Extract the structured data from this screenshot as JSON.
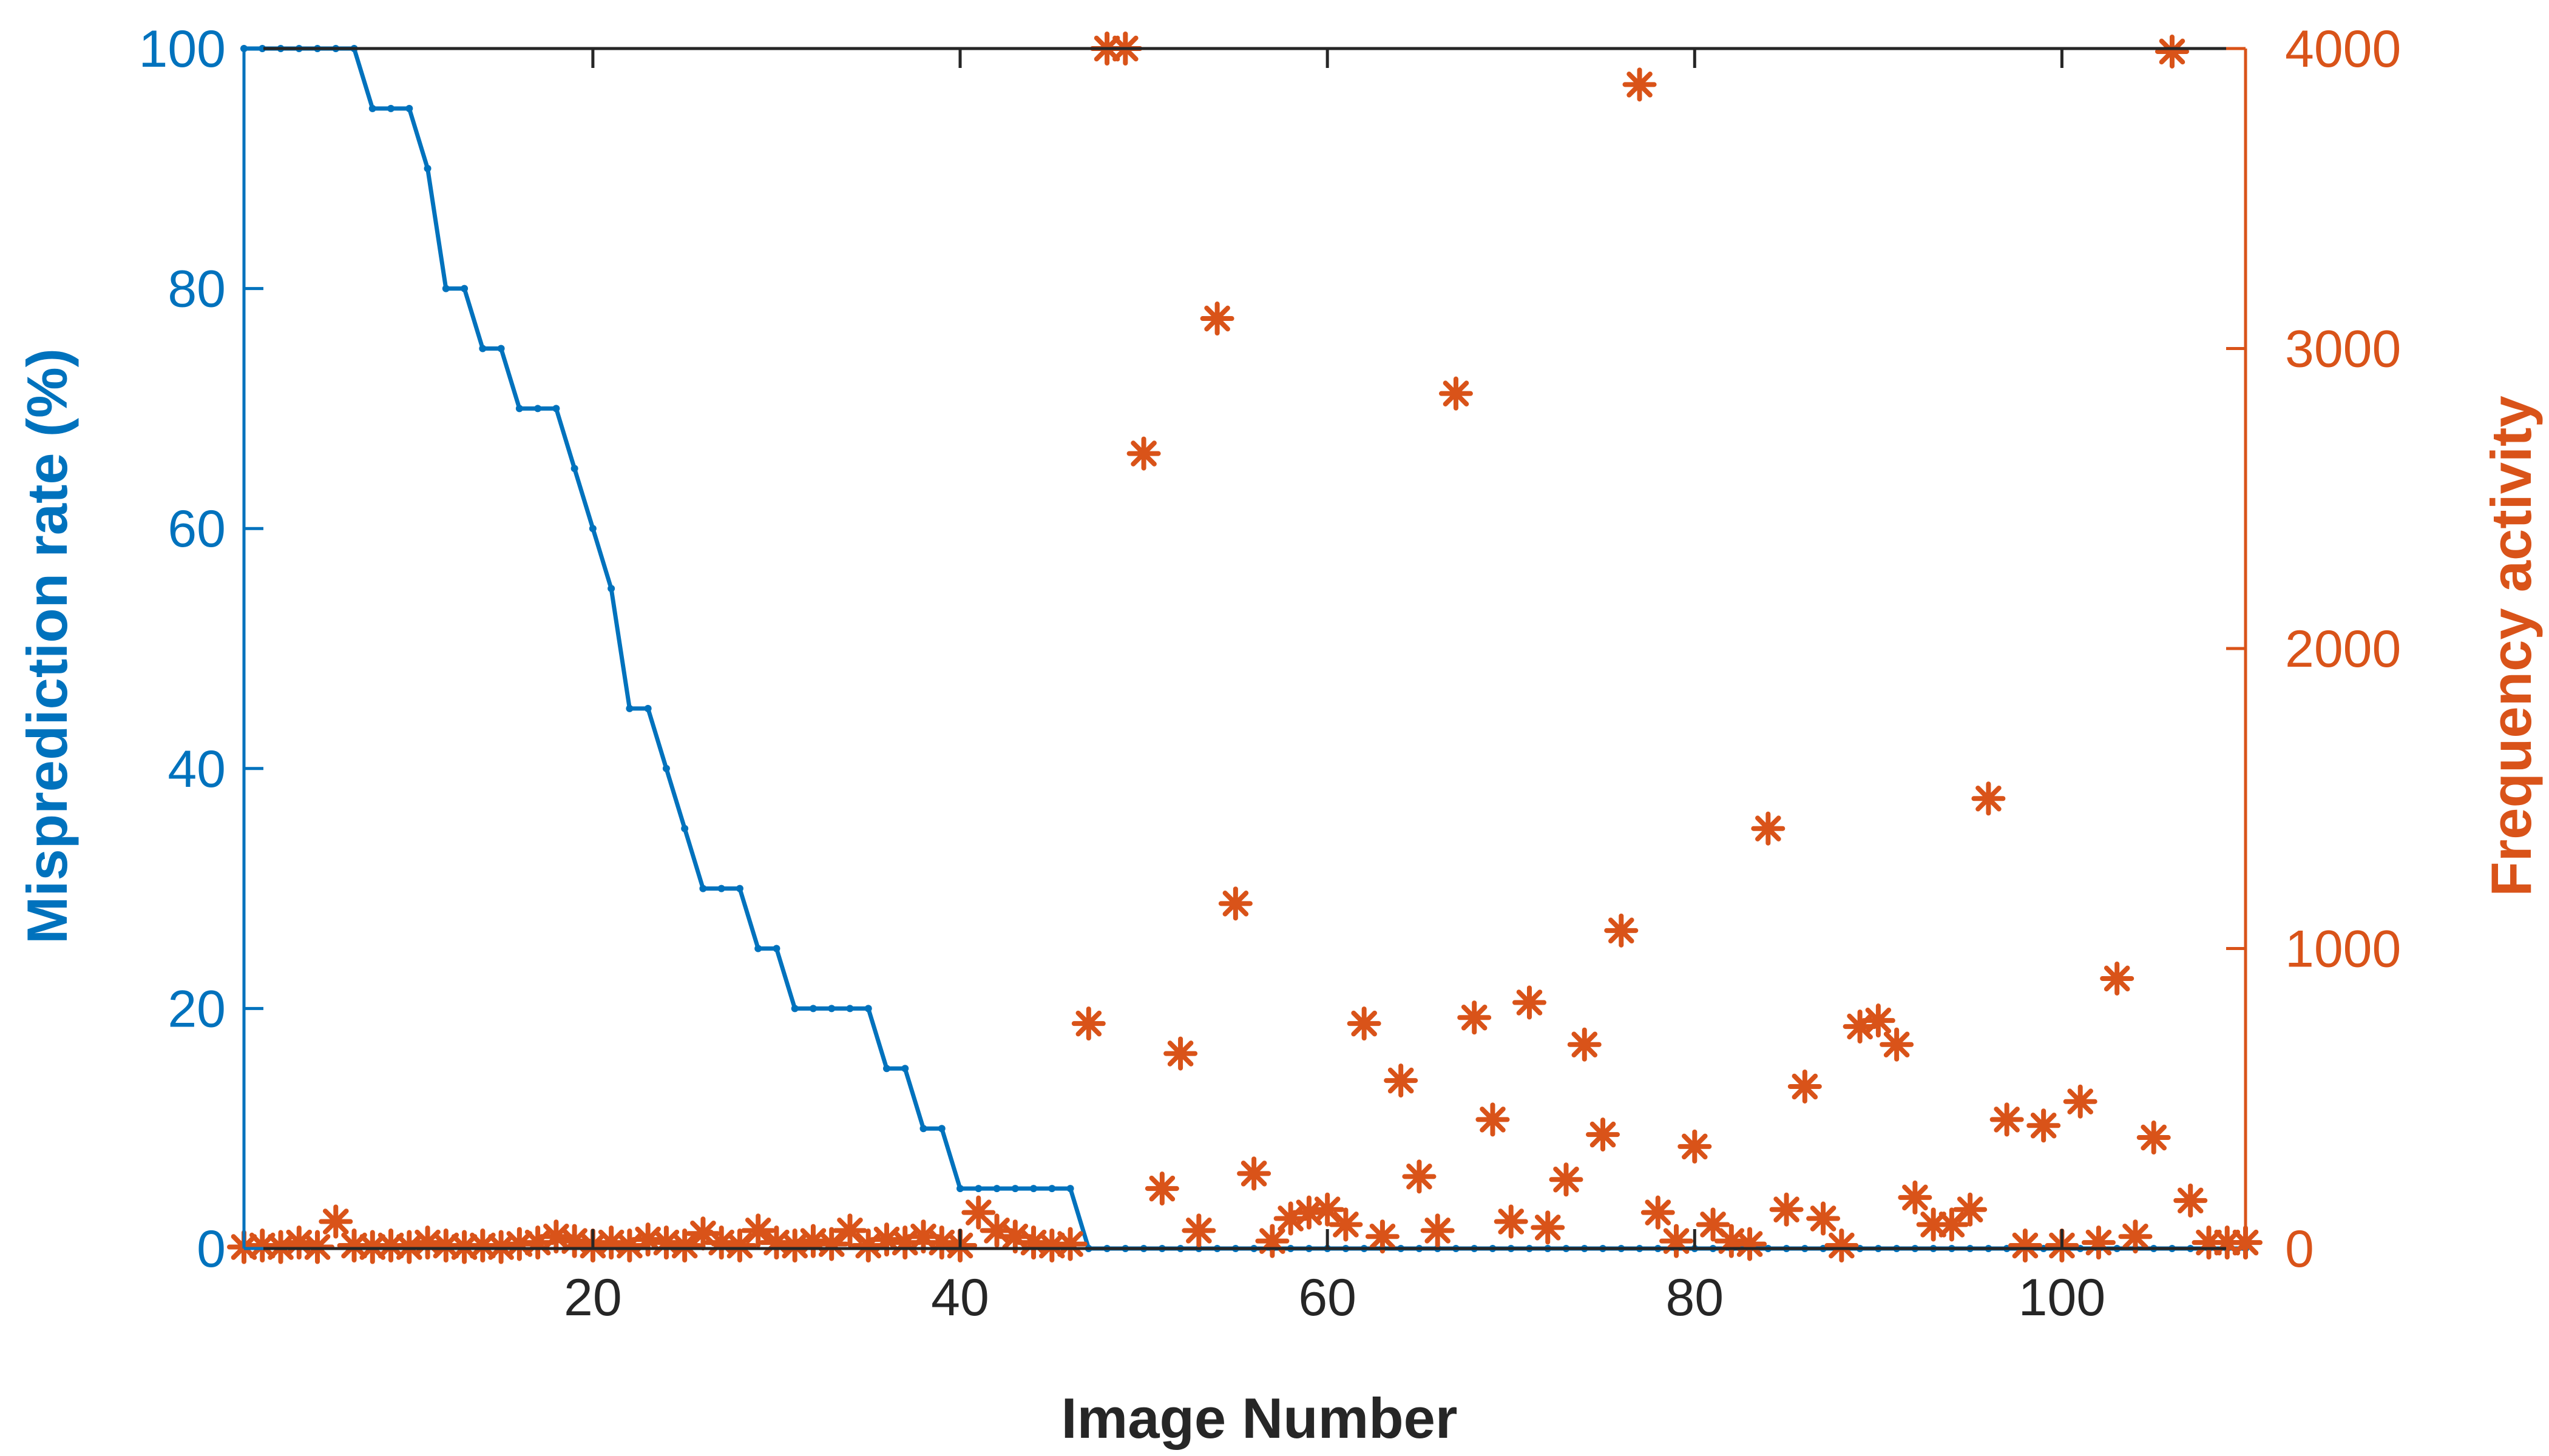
{
  "chart_data": {
    "type": "line",
    "title": "",
    "xlabel": "Image Number",
    "ylabel_left": "Misprediction rate (%)",
    "ylabel_right": "Frequency activity",
    "xlim": [
      1,
      110
    ],
    "ylim_left": [
      0,
      100
    ],
    "ylim_right": [
      0,
      4000
    ],
    "x_ticks": [
      20,
      40,
      60,
      80,
      100
    ],
    "y_ticks_left": [
      0,
      20,
      40,
      60,
      80,
      100
    ],
    "y_ticks_right": [
      0,
      1000,
      2000,
      3000,
      4000
    ],
    "grid": false,
    "colors": {
      "left": "#0072BD",
      "right": "#D95319",
      "axis": "#262626"
    },
    "series": [
      {
        "axis": "left",
        "style": "line-with-dots",
        "x": [
          1,
          2,
          3,
          4,
          5,
          6,
          7,
          8,
          9,
          10,
          11,
          12,
          13,
          14,
          15,
          16,
          17,
          18,
          19,
          20,
          21,
          22,
          23,
          24,
          25,
          26,
          27,
          28,
          29,
          30,
          31,
          32,
          33,
          34,
          35,
          36,
          37,
          38,
          39,
          40,
          41,
          42,
          43,
          44,
          45,
          46,
          47,
          48,
          49,
          50,
          51,
          52,
          53,
          54,
          55,
          56,
          57,
          58,
          59,
          60,
          61,
          62,
          63,
          64,
          65,
          66,
          67,
          68,
          69,
          70,
          71,
          72,
          73,
          74,
          75,
          76,
          77,
          78,
          79,
          80,
          81,
          82,
          83,
          84,
          85,
          86,
          87,
          88,
          89,
          90,
          91,
          92,
          93,
          94,
          95,
          96,
          97,
          98,
          99,
          100,
          101,
          102,
          103,
          104,
          105,
          106,
          107,
          108,
          109,
          110
        ],
        "y": [
          100,
          100,
          100,
          100,
          100,
          100,
          100,
          95,
          95,
          95,
          90,
          80,
          80,
          75,
          75,
          70,
          70,
          70,
          65,
          60,
          55,
          45,
          45,
          40,
          35,
          30,
          30,
          30,
          25,
          25,
          20,
          20,
          20,
          20,
          20,
          15,
          15,
          10,
          10,
          5,
          5,
          5,
          5,
          5,
          5,
          5,
          0,
          0,
          0,
          0,
          0,
          0,
          0,
          0,
          0,
          0,
          0,
          0,
          0,
          0,
          0,
          0,
          0,
          0,
          0,
          0,
          0,
          0,
          0,
          0,
          0,
          0,
          0,
          0,
          0,
          0,
          0,
          0,
          0,
          0,
          0,
          0,
          0,
          0,
          0,
          0,
          0,
          0,
          0,
          0,
          0,
          0,
          0,
          0,
          0,
          0,
          0,
          0,
          0,
          0,
          0,
          0,
          0,
          0,
          0,
          0,
          0,
          0,
          0,
          0
        ]
      },
      {
        "axis": "right",
        "style": "asterisk",
        "x": [
          1,
          2,
          3,
          4,
          5,
          6,
          7,
          8,
          9,
          10,
          11,
          12,
          13,
          14,
          15,
          16,
          17,
          18,
          19,
          20,
          21,
          22,
          23,
          24,
          25,
          26,
          27,
          28,
          29,
          30,
          31,
          32,
          33,
          34,
          35,
          36,
          37,
          38,
          39,
          40,
          41,
          42,
          43,
          44,
          45,
          46,
          47,
          48,
          49,
          50,
          51,
          52,
          53,
          54,
          55,
          56,
          57,
          58,
          59,
          60,
          61,
          62,
          63,
          64,
          65,
          66,
          67,
          68,
          69,
          70,
          71,
          72,
          73,
          74,
          75,
          76,
          77,
          78,
          79,
          80,
          81,
          82,
          83,
          84,
          85,
          86,
          87,
          88,
          89,
          90,
          91,
          92,
          93,
          94,
          95,
          96,
          97,
          98,
          99,
          100,
          101,
          102,
          103,
          104,
          105,
          106,
          107,
          108,
          109,
          110
        ],
        "y": [
          5,
          10,
          5,
          20,
          5,
          90,
          10,
          5,
          10,
          5,
          20,
          10,
          5,
          10,
          5,
          15,
          20,
          40,
          25,
          10,
          20,
          10,
          30,
          20,
          10,
          50,
          20,
          10,
          60,
          20,
          10,
          25,
          15,
          60,
          10,
          30,
          20,
          40,
          20,
          10,
          120,
          60,
          40,
          20,
          10,
          15,
          750,
          4000,
          4000,
          2650,
          200,
          650,
          60,
          3100,
          1150,
          250,
          25,
          100,
          120,
          130,
          80,
          750,
          40,
          560,
          240,
          60,
          2850,
          770,
          430,
          90,
          820,
          70,
          230,
          680,
          380,
          1060,
          3880,
          120,
          25,
          340,
          80,
          25,
          15,
          1400,
          130,
          540,
          100,
          10,
          740,
          760,
          680,
          170,
          80,
          80,
          130,
          1500,
          430,
          10,
          410,
          10,
          490,
          20,
          900,
          40,
          370,
          3990,
          160,
          20,
          20,
          20
        ]
      }
    ]
  }
}
